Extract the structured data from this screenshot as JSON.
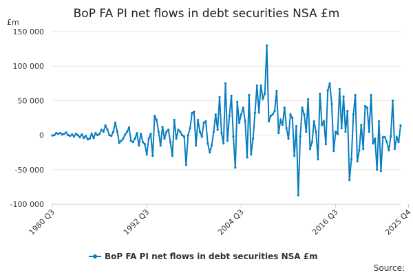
{
  "chart_data": {
    "type": "line",
    "title": "BoP FA PI net flows in debt securities NSA £m",
    "unit_label": "£m",
    "y_ticks": [
      150000,
      100000,
      50000,
      0,
      -50000,
      -100000
    ],
    "y_tick_labels": [
      "150 000",
      "100 000",
      "50 000",
      "0",
      "-50 000",
      "-100 000"
    ],
    "ylim": [
      -100000,
      150000
    ],
    "x_tick_labels": [
      "1980 Q3",
      "1992 Q3",
      "2004 Q3",
      "2016 Q3",
      "2025 Q4"
    ],
    "x_tick_indices": [
      0,
      48,
      96,
      144,
      181
    ],
    "legend": "top-none-bottom-center",
    "grid": true,
    "color": "#0a7dbf",
    "series": [
      {
        "name": "BoP FA PI net flows in debt securities NSA £m",
        "values": [
          -500,
          0,
          3000,
          2000,
          3000,
          1000,
          2000,
          4000,
          0,
          -1000,
          1000,
          -2000,
          2000,
          0,
          -3000,
          1000,
          -4000,
          -1000,
          -6000,
          -5000,
          2000,
          -4000,
          3000,
          0,
          2000,
          8000,
          5000,
          14000,
          8000,
          0,
          -1000,
          5000,
          18000,
          5000,
          -11000,
          -8000,
          -5000,
          1000,
          5000,
          11000,
          -8000,
          -10000,
          -5000,
          3000,
          -15000,
          2000,
          -10000,
          -13000,
          -28000,
          -5000,
          2000,
          -30000,
          28000,
          22000,
          5000,
          -15000,
          12000,
          -5000,
          5000,
          8000,
          -10000,
          -30000,
          22000,
          -5000,
          8000,
          5000,
          0,
          -2000,
          -43000,
          0,
          10000,
          32000,
          34000,
          -15000,
          22000,
          5000,
          -2000,
          18000,
          20000,
          -12000,
          -25000,
          -15000,
          5000,
          30000,
          8000,
          55000,
          3000,
          -12000,
          75000,
          -8000,
          28000,
          57000,
          -2000,
          -47000,
          48000,
          18000,
          30000,
          40000,
          20000,
          -32000,
          58000,
          -28000,
          -5000,
          32000,
          72000,
          33000,
          72000,
          53000,
          60000,
          130000,
          20000,
          28000,
          30000,
          35000,
          64000,
          3000,
          22000,
          15000,
          40000,
          10000,
          -5000,
          30000,
          25000,
          -30000,
          13000,
          -87000,
          -2000,
          40000,
          30000,
          5000,
          52000,
          -20000,
          -10000,
          20000,
          5000,
          -35000,
          60000,
          15000,
          20000,
          -13000,
          65000,
          75000,
          45000,
          -23000,
          5000,
          2000,
          67000,
          10000,
          56000,
          5000,
          35000,
          -65000,
          -35000,
          30000,
          58000,
          -38000,
          -22000,
          15000,
          -20000,
          42000,
          40000,
          5000,
          58000,
          -12000,
          -5000,
          -50000,
          20000,
          -52000,
          -3000,
          -3000,
          -10000,
          -22000,
          -2000,
          50000,
          -20000,
          -3000,
          -10000,
          14000
        ]
      }
    ],
    "source_label": "Source:"
  }
}
